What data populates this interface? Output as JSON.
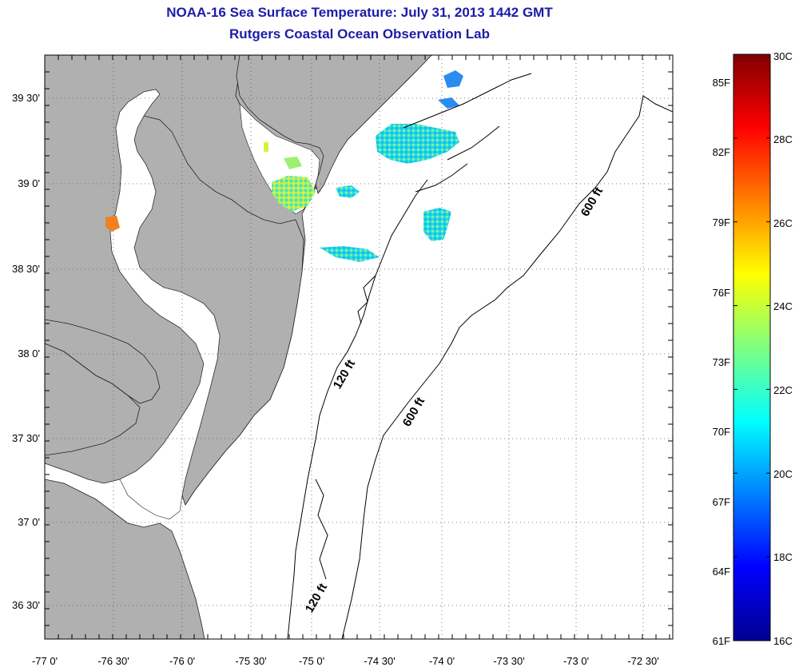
{
  "title": "NOAA-16 Sea Surface Temperature:  July 31, 2013 1442 GMT",
  "subtitle": "Rutgers Coastal Ocean Observation Lab",
  "map": {
    "lon_ticks": [
      "-77 0'",
      "-76 30'",
      "-76 0'",
      "-75 30'",
      "-75 0'",
      "-74 30'",
      "-74 0'",
      "-73 30'",
      "-73 0'",
      "-72 30'"
    ],
    "lat_ticks": [
      "39 30'",
      "39 0'",
      "38 30'",
      "38 0'",
      "37 30'",
      "37 0'",
      "36 30'"
    ],
    "contour_labels": [
      "600 ft",
      "120 ft",
      "600 ft",
      "120 ft"
    ],
    "land_color": "#b0b0b0",
    "ocean_color": "#ffffff"
  },
  "colorbar": {
    "celsius_labels": [
      "30C",
      "28C",
      "26C",
      "24C",
      "22C",
      "20C",
      "18C",
      "16C"
    ],
    "fahrenheit_labels": [
      "85F",
      "82F",
      "79F",
      "76F",
      "73F",
      "70F",
      "67F",
      "64F",
      "61F"
    ],
    "colors": [
      "#00008f",
      "#0000ff",
      "#0080ff",
      "#00ffff",
      "#80ff80",
      "#ffff00",
      "#ff8000",
      "#ff0000",
      "#800000"
    ]
  }
}
